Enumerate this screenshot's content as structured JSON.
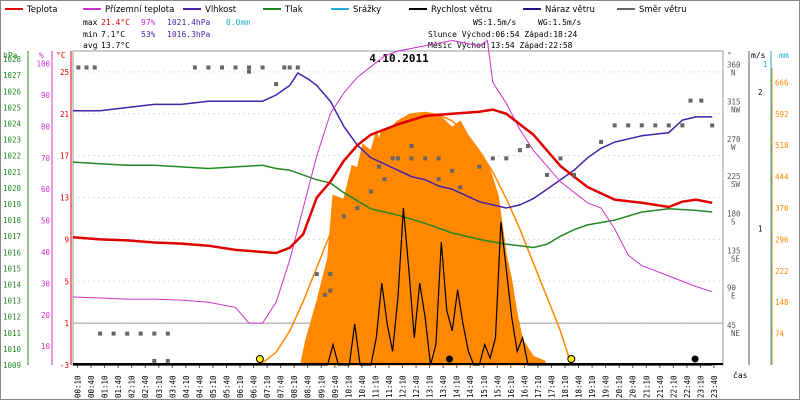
{
  "chart_data": {
    "type": "line",
    "title": "4.10.2011",
    "legend": [
      {
        "label": "Teplota",
        "color": "#e00000"
      },
      {
        "label": "Přízemní teplota",
        "color": "#cc33cc"
      },
      {
        "label": "Vlhkost",
        "color": "#4422aa"
      },
      {
        "label": "Tlak",
        "color": "#228822"
      },
      {
        "label": "Srážky",
        "color": "#22aacc"
      },
      {
        "label": "Rychlost větru",
        "color": "#000000"
      },
      {
        "label": "Náraz větru",
        "color": "#221188"
      },
      {
        "label": "Směr větru",
        "color": "#666666"
      }
    ],
    "stats": {
      "max_label": "max",
      "max_temp": "21.4°C",
      "max_hum": "97%",
      "max_press": "1021.4hPa",
      "max_rain": "0.0mm",
      "min_label": "min",
      "min_temp": "7.1°C",
      "min_hum": "53%",
      "min_press": "1016.3hPa",
      "avg_label": "avg",
      "avg_temp": "13.7°C"
    },
    "info": {
      "ws": "WS:1.5m/s",
      "wg": "WG:1.5m/s",
      "sun": "Slunce Východ:06:54  Západ:18:24",
      "moon": "Měsíc  Východ:13:54  Západ:22:58"
    },
    "axis_units": {
      "hpa": "hPa",
      "pct": "%",
      "degc": "°C",
      "deg": "°",
      "ms": "m/s",
      "mm": "mm",
      "cas": "čas"
    },
    "x_ticks": [
      "00:10",
      "00:40",
      "01:10",
      "01:40",
      "02:10",
      "02:40",
      "03:10",
      "03:40",
      "04:10",
      "04:40",
      "05:10",
      "05:40",
      "06:10",
      "06:40",
      "07:10",
      "07:40",
      "08:10",
      "08:40",
      "09:10",
      "09:40",
      "10:10",
      "10:40",
      "11:10",
      "11:40",
      "12:10",
      "12:40",
      "13:10",
      "13:40",
      "14:10",
      "14:40",
      "15:10",
      "15:40",
      "16:10",
      "16:40",
      "17:10",
      "17:40",
      "18:10",
      "18:40",
      "19:10",
      "19:40",
      "20:10",
      "20:40",
      "21:10",
      "21:40",
      "22:10",
      "22:40",
      "23:10",
      "23:40"
    ],
    "hpa_ticks": [
      "1028",
      "1027",
      "1026",
      "1025",
      "1024",
      "1023",
      "1022",
      "1021",
      "1020",
      "1019",
      "1018",
      "1017",
      "1016",
      "1015",
      "1014",
      "1013",
      "1012",
      "1011",
      "1010",
      "1009"
    ],
    "pct_ticks": [
      "100",
      "90",
      "80",
      "70",
      "60",
      "50",
      "40",
      "30",
      "20",
      "10"
    ],
    "degc_ticks": [
      "25",
      "21",
      "17",
      "13",
      "9",
      "5",
      "1",
      "-3"
    ],
    "dir_ticks": [
      "360 N",
      "315 NW",
      "270 W",
      "225 SW",
      "180 S",
      "135 SE",
      "90 E",
      "45 NE"
    ],
    "ms_ticks": [
      "2",
      "1"
    ],
    "mm_ticks": [
      "1"
    ],
    "sun_ticks": [
      "666",
      "592",
      "518",
      "444",
      "370",
      "296",
      "222",
      "148",
      "74"
    ],
    "temperature_c": [
      [
        0,
        9.2
      ],
      [
        1,
        9.0
      ],
      [
        2,
        8.9
      ],
      [
        3,
        8.7
      ],
      [
        4,
        8.6
      ],
      [
        5,
        8.4
      ],
      [
        6,
        8.0
      ],
      [
        7,
        7.8
      ],
      [
        7.5,
        7.7
      ],
      [
        8,
        8.2
      ],
      [
        8.5,
        9.5
      ],
      [
        9,
        13.0
      ],
      [
        9.5,
        14.5
      ],
      [
        10,
        16.5
      ],
      [
        10.5,
        18.0
      ],
      [
        11,
        19.0
      ],
      [
        12,
        20.0
      ],
      [
        13,
        20.8
      ],
      [
        14,
        21.0
      ],
      [
        15,
        21.2
      ],
      [
        15.5,
        21.4
      ],
      [
        16,
        21.0
      ],
      [
        16.5,
        20.0
      ],
      [
        17,
        19.0
      ],
      [
        17.5,
        17.5
      ],
      [
        18,
        16.0
      ],
      [
        18.5,
        15.0
      ],
      [
        19,
        14.0
      ],
      [
        20,
        12.8
      ],
      [
        21,
        12.5
      ],
      [
        22,
        12.1
      ],
      [
        22.5,
        12.6
      ],
      [
        23,
        12.8
      ],
      [
        23.6,
        12.5
      ]
    ],
    "ground_temp_c": [
      [
        0,
        3.5
      ],
      [
        1,
        3.4
      ],
      [
        2,
        3.3
      ],
      [
        3,
        3.3
      ],
      [
        4,
        3.2
      ],
      [
        5,
        3.0
      ],
      [
        6,
        2.5
      ],
      [
        6.5,
        1.0
      ],
      [
        7,
        1.0
      ],
      [
        7.5,
        3.0
      ],
      [
        8,
        7.0
      ],
      [
        8.5,
        12.0
      ],
      [
        9,
        17.0
      ],
      [
        9.5,
        21.0
      ],
      [
        10,
        23.0
      ],
      [
        10.5,
        24.5
      ],
      [
        11,
        25.5
      ],
      [
        11.5,
        26.5
      ],
      [
        12,
        27.0
      ],
      [
        13,
        27.5
      ],
      [
        14,
        28.0
      ],
      [
        15,
        27.5
      ],
      [
        15.3,
        28.0
      ],
      [
        15.5,
        24.0
      ],
      [
        16,
        22.0
      ],
      [
        16.5,
        19.5
      ],
      [
        17,
        17.5
      ],
      [
        17.5,
        16.0
      ],
      [
        18,
        14.5
      ],
      [
        18.5,
        13.5
      ],
      [
        19,
        12.5
      ],
      [
        19.5,
        12.0
      ],
      [
        20,
        10.0
      ],
      [
        20.5,
        7.5
      ],
      [
        21,
        6.5
      ],
      [
        22,
        5.5
      ],
      [
        23,
        4.5
      ],
      [
        23.6,
        4.0
      ]
    ],
    "humidity_pct": [
      [
        0,
        85
      ],
      [
        1,
        85
      ],
      [
        2,
        86
      ],
      [
        3,
        87
      ],
      [
        4,
        87
      ],
      [
        5,
        88
      ],
      [
        6,
        88
      ],
      [
        7,
        88
      ],
      [
        7.5,
        90
      ],
      [
        8,
        93
      ],
      [
        8.3,
        97
      ],
      [
        8.7,
        95
      ],
      [
        9,
        93
      ],
      [
        9.5,
        88
      ],
      [
        10,
        80
      ],
      [
        10.5,
        74
      ],
      [
        11,
        70
      ],
      [
        11.5,
        68
      ],
      [
        12,
        66
      ],
      [
        12.5,
        64
      ],
      [
        13,
        63
      ],
      [
        13.5,
        61
      ],
      [
        14,
        60
      ],
      [
        14.5,
        58
      ],
      [
        15,
        56
      ],
      [
        15.5,
        55
      ],
      [
        16,
        54
      ],
      [
        16.5,
        55
      ],
      [
        17,
        57
      ],
      [
        17.5,
        60
      ],
      [
        18,
        63
      ],
      [
        18.5,
        66
      ],
      [
        19,
        70
      ],
      [
        19.5,
        73
      ],
      [
        20,
        75
      ],
      [
        21,
        77
      ],
      [
        22,
        78
      ],
      [
        22.5,
        82
      ],
      [
        23,
        83
      ],
      [
        23.6,
        83
      ]
    ],
    "pressure_hpa": [
      [
        0,
        1021.6
      ],
      [
        1,
        1021.5
      ],
      [
        2,
        1021.4
      ],
      [
        3,
        1021.4
      ],
      [
        4,
        1021.3
      ],
      [
        5,
        1021.2
      ],
      [
        6,
        1021.3
      ],
      [
        7,
        1021.4
      ],
      [
        7.5,
        1021.2
      ],
      [
        8,
        1021.1
      ],
      [
        9,
        1020.5
      ],
      [
        9.5,
        1020.3
      ],
      [
        10,
        1019.7
      ],
      [
        10.5,
        1019.2
      ],
      [
        11,
        1018.7
      ],
      [
        12,
        1018.3
      ],
      [
        13,
        1017.8
      ],
      [
        14,
        1017.2
      ],
      [
        15,
        1016.8
      ],
      [
        16,
        1016.5
      ],
      [
        17,
        1016.3
      ],
      [
        17.5,
        1016.5
      ],
      [
        18,
        1017.0
      ],
      [
        18.5,
        1017.4
      ],
      [
        19,
        1017.7
      ],
      [
        20,
        1018.0
      ],
      [
        21,
        1018.5
      ],
      [
        22,
        1018.7
      ],
      [
        23,
        1018.6
      ],
      [
        23.6,
        1018.5
      ]
    ],
    "wind_ms": [
      [
        0,
        0
      ],
      [
        9.4,
        0
      ],
      [
        9.6,
        0.15
      ],
      [
        9.8,
        0
      ],
      [
        10.2,
        0
      ],
      [
        10.4,
        0.3
      ],
      [
        10.6,
        0
      ],
      [
        11.0,
        0
      ],
      [
        11.2,
        0.2
      ],
      [
        11.4,
        0.6
      ],
      [
        11.6,
        0.3
      ],
      [
        11.8,
        0.1
      ],
      [
        12.0,
        0.5
      ],
      [
        12.2,
        1.15
      ],
      [
        12.4,
        0.7
      ],
      [
        12.6,
        0.2
      ],
      [
        12.8,
        0.6
      ],
      [
        13.0,
        0.35
      ],
      [
        13.2,
        0
      ],
      [
        13.4,
        0.15
      ],
      [
        13.6,
        0.9
      ],
      [
        13.8,
        0.4
      ],
      [
        14.0,
        0.25
      ],
      [
        14.2,
        0.55
      ],
      [
        14.4,
        0.3
      ],
      [
        14.6,
        0.1
      ],
      [
        14.8,
        0
      ],
      [
        15.0,
        0
      ],
      [
        15.2,
        0.15
      ],
      [
        15.4,
        0.05
      ],
      [
        15.6,
        0.2
      ],
      [
        15.8,
        1.05
      ],
      [
        16.0,
        0.7
      ],
      [
        16.2,
        0.35
      ],
      [
        16.4,
        0.1
      ],
      [
        16.6,
        0.2
      ],
      [
        16.8,
        0
      ],
      [
        23.6,
        0
      ]
    ],
    "wind_dir_deg": [
      [
        0.2,
        360
      ],
      [
        0.5,
        360
      ],
      [
        0.8,
        360
      ],
      [
        1.0,
        38
      ],
      [
        1.5,
        38
      ],
      [
        2.0,
        38
      ],
      [
        2.5,
        38
      ],
      [
        3.0,
        38
      ],
      [
        3.5,
        38
      ],
      [
        3.0,
        5
      ],
      [
        3.5,
        5
      ],
      [
        4.5,
        360
      ],
      [
        5.0,
        360
      ],
      [
        5.5,
        360
      ],
      [
        6.0,
        360
      ],
      [
        6.5,
        360
      ],
      [
        7.0,
        360
      ],
      [
        6.5,
        355
      ],
      [
        7.5,
        340
      ],
      [
        7.8,
        360
      ],
      [
        8.0,
        360
      ],
      [
        8.3,
        360
      ],
      [
        9.0,
        110
      ],
      [
        9.5,
        110
      ],
      [
        9.3,
        85
      ],
      [
        9.5,
        90
      ],
      [
        10.0,
        180
      ],
      [
        10.5,
        190
      ],
      [
        11.0,
        210
      ],
      [
        11.5,
        225
      ],
      [
        11.3,
        240
      ],
      [
        11.8,
        250
      ],
      [
        12.0,
        250
      ],
      [
        12.5,
        250
      ],
      [
        12.5,
        265
      ],
      [
        13.0,
        250
      ],
      [
        13.5,
        250
      ],
      [
        13.5,
        225
      ],
      [
        14.0,
        235
      ],
      [
        14.3,
        215
      ],
      [
        15.0,
        240
      ],
      [
        15.5,
        250
      ],
      [
        16.0,
        250
      ],
      [
        16.5,
        260
      ],
      [
        16.8,
        265
      ],
      [
        17.5,
        230
      ],
      [
        18.0,
        250
      ],
      [
        18.5,
        230
      ],
      [
        19.5,
        270
      ],
      [
        20.0,
        290
      ],
      [
        20.5,
        290
      ],
      [
        21.0,
        290
      ],
      [
        21.5,
        290
      ],
      [
        22.0,
        290
      ],
      [
        22.5,
        290
      ],
      [
        22.8,
        320
      ],
      [
        23.2,
        320
      ],
      [
        23.6,
        290
      ]
    ],
    "sun_w_m2": [
      [
        6.9,
        0
      ],
      [
        7.5,
        30
      ],
      [
        8.0,
        80
      ],
      [
        8.5,
        150
      ],
      [
        9.0,
        230
      ],
      [
        9.5,
        310
      ],
      [
        10.0,
        390
      ],
      [
        10.5,
        455
      ],
      [
        11.0,
        505
      ],
      [
        11.5,
        545
      ],
      [
        12.0,
        575
      ],
      [
        12.5,
        592
      ],
      [
        13.0,
        595
      ],
      [
        13.5,
        590
      ],
      [
        14.0,
        575
      ],
      [
        14.5,
        548
      ],
      [
        15.0,
        505
      ],
      [
        15.5,
        455
      ],
      [
        16.0,
        392
      ],
      [
        16.5,
        320
      ],
      [
        17.0,
        240
      ],
      [
        17.5,
        160
      ],
      [
        18.0,
        80
      ],
      [
        18.4,
        0
      ]
    ],
    "sun_observed": [
      [
        8.4,
        0
      ],
      [
        8.6,
        60
      ],
      [
        9.0,
        150
      ],
      [
        9.4,
        250
      ],
      [
        9.6,
        400
      ],
      [
        10.0,
        390
      ],
      [
        10.3,
        470
      ],
      [
        10.5,
        465
      ],
      [
        10.7,
        520
      ],
      [
        11.0,
        505
      ],
      [
        11.2,
        550
      ],
      [
        11.3,
        530
      ],
      [
        11.4,
        555
      ],
      [
        11.8,
        560
      ],
      [
        12.0,
        575
      ],
      [
        12.4,
        590
      ],
      [
        13.0,
        595
      ],
      [
        13.5,
        590
      ],
      [
        14.0,
        560
      ],
      [
        14.3,
        575
      ],
      [
        14.6,
        540
      ],
      [
        15.0,
        505
      ],
      [
        15.2,
        485
      ],
      [
        15.4,
        460
      ],
      [
        15.7,
        400
      ],
      [
        16.0,
        260
      ],
      [
        16.2,
        200
      ],
      [
        16.4,
        120
      ],
      [
        16.6,
        60
      ],
      [
        16.8,
        40
      ],
      [
        17.0,
        20
      ],
      [
        17.4,
        10
      ],
      [
        17.5,
        0
      ]
    ],
    "markers": {
      "sunrise_hour": 6.9,
      "sunset_hour": 18.4,
      "moonrise_hour": 13.9,
      "moonset_hour": 22.97
    }
  }
}
